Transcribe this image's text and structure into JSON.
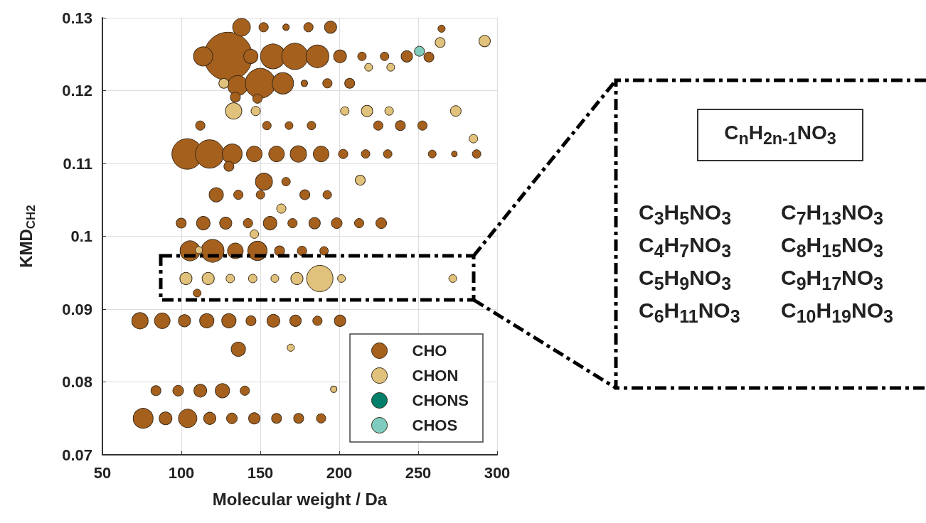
{
  "chart_data": {
    "type": "bubble",
    "xlabel": "Molecular weight / Da",
    "ylabel": "KMD$_{CH2}$",
    "xlim": [
      50,
      300
    ],
    "xticks": [
      50,
      100,
      150,
      200,
      250,
      300
    ],
    "ylim": [
      0.07,
      0.13
    ],
    "yticks": [
      0.07,
      0.08,
      0.09,
      0.1,
      0.11,
      0.12,
      0.13
    ],
    "grid": true,
    "legend": "bottom right",
    "marker": "circle",
    "annotations": [
      "C$_{n}$H$_{2n-1}$NO$_{3}$",
      "C$_{3}$H$_{5}$NO$_{3}$",
      "C$_{7}$H$_{13}$NO$_{3}$",
      "C$_{4}$H$_{7}$NO$_{3}$",
      "C$_{8}$H$_{15}$NO$_{3}$",
      "C$_{5}$H$_{9}$NO$_{3}$",
      "C$_{9}$H$_{17}$NO$_{3}$",
      "C$_{6}$H$_{11}$NO$_{3}$",
      "C$_{10}$H$_{19}$NO$_{3}$"
    ],
    "series": [
      {
        "name": "CHO",
        "color": "#a5601d",
        "x": [
          129.6,
          138.1,
          152.1,
          166.3,
          180.5,
          194.5,
          264.8,
          113.8,
          144,
          158,
          171.9,
          186.2,
          200.5,
          214.4,
          228.7,
          242.8,
          256.8,
          135.7,
          150,
          164.3,
          177.9,
          192.5,
          206.6,
          134.2,
          148.2,
          112,
          154.2,
          168.2,
          182.4,
          224.7,
          238.7,
          252.7,
          103.7,
          117.9,
          132.2,
          146.2,
          160.3,
          174.1,
          188.5,
          202.5,
          216.7,
          230.7,
          258.9,
          272.9,
          287,
          130.1,
          152.3,
          166.3,
          122.1,
          136.1,
          150.1,
          178.2,
          192.4,
          99.9,
          113.9,
          128.1,
          142.2,
          156.2,
          170.4,
          184.4,
          198.4,
          212.6,
          226.6,
          105.5,
          119.8,
          134.2,
          148.2,
          162.2,
          176.4,
          190.4,
          110,
          73.8,
          87.9,
          102,
          116.1,
          130.1,
          144.1,
          158.3,
          172.3,
          186.2,
          200.5,
          136.1,
          83.9,
          98,
          112,
          126,
          140.2,
          75.8,
          90,
          104,
          118,
          132,
          146.2,
          160.3,
          174.3,
          188.5
        ],
        "values": [
          0.1247,
          0.1287,
          0.1287,
          0.1287,
          0.1287,
          0.1287,
          0.1285,
          0.1247,
          0.1247,
          0.1247,
          0.1247,
          0.1247,
          0.1247,
          0.1247,
          0.1247,
          0.1247,
          0.1246,
          0.1207,
          0.121,
          0.121,
          0.121,
          0.121,
          0.121,
          0.1191,
          0.1189,
          0.1152,
          0.1152,
          0.1152,
          0.1152,
          0.1152,
          0.1152,
          0.1152,
          0.1113,
          0.1113,
          0.1113,
          0.1113,
          0.1113,
          0.1113,
          0.1113,
          0.1113,
          0.1113,
          0.1113,
          0.1113,
          0.1113,
          0.1113,
          0.1096,
          0.1075,
          0.1075,
          0.1057,
          0.1057,
          0.1057,
          0.1057,
          0.1057,
          0.1018,
          0.1018,
          0.1018,
          0.1018,
          0.1018,
          0.1018,
          0.1018,
          0.1018,
          0.1018,
          0.1018,
          0.098,
          0.098,
          0.098,
          0.098,
          0.098,
          0.098,
          0.098,
          0.0922,
          0.0884,
          0.0884,
          0.0884,
          0.0884,
          0.0884,
          0.0884,
          0.0884,
          0.0884,
          0.0884,
          0.0884,
          0.0845,
          0.0788,
          0.0788,
          0.0788,
          0.0788,
          0.0788,
          0.075,
          0.075,
          0.075,
          0.075,
          0.075,
          0.075,
          0.075,
          0.075,
          0.075
        ],
        "sizes": [
          1,
          0.135,
          0.037,
          0.018,
          0.037,
          0.063,
          0.022,
          0.158,
          0.087,
          0.265,
          0.296,
          0.221,
          0.07,
          0.031,
          0.031,
          0.055,
          0.042,
          0.17,
          0.381,
          0.195,
          0.018,
          0.037,
          0.042,
          0.042,
          0.037,
          0.037,
          0.031,
          0.026,
          0.031,
          0.037,
          0.042,
          0.037,
          0.4,
          0.346,
          0.17,
          0.105,
          0.105,
          0.114,
          0.105,
          0.037,
          0.031,
          0.031,
          0.026,
          0.014,
          0.031,
          0.042,
          0.125,
          0.031,
          0.087,
          0.037,
          0.031,
          0.042,
          0.031,
          0.042,
          0.078,
          0.063,
          0.037,
          0.078,
          0.037,
          0.055,
          0.049,
          0.037,
          0.049,
          0.17,
          0.221,
          0.105,
          0.158,
          0.042,
          0.037,
          0.031,
          0.026,
          0.114,
          0.105,
          0.063,
          0.087,
          0.087,
          0.042,
          0.07,
          0.055,
          0.037,
          0.055,
          0.087,
          0.042,
          0.049,
          0.07,
          0.087,
          0.037,
          0.17,
          0.07,
          0.146,
          0.063,
          0.049,
          0.055,
          0.042,
          0.042,
          0.037
        ]
      },
      {
        "name": "CHON",
        "color": "#e0c27c",
        "x": [
          263.9,
          292.1,
          218.6,
          232.6,
          126.9,
          133.1,
          147.1,
          203.5,
          217.6,
          231.6,
          273.8,
          285,
          213.3,
          163.3,
          146.2,
          111.1,
          102.9,
          117,
          131,
          145.2,
          159.2,
          173.2,
          187.7,
          201.4,
          271.9,
          169.3,
          196.5
        ],
        "values": [
          0.1266,
          0.1268,
          0.1232,
          0.1232,
          0.121,
          0.1172,
          0.1172,
          0.1172,
          0.1172,
          0.1172,
          0.1172,
          0.1134,
          0.1077,
          0.1038,
          0.1003,
          0.0981,
          0.0942,
          0.0942,
          0.0942,
          0.0942,
          0.0942,
          0.0942,
          0.0942,
          0.0942,
          0.0942,
          0.0847,
          0.079
        ],
        "sizes": [
          0.042,
          0.055,
          0.026,
          0.026,
          0.042,
          0.114,
          0.037,
          0.031,
          0.055,
          0.031,
          0.049,
          0.031,
          0.042,
          0.037,
          0.031,
          0.022,
          0.063,
          0.063,
          0.031,
          0.031,
          0.026,
          0.063,
          0.296,
          0.026,
          0.026,
          0.022,
          0.018
        ]
      },
      {
        "name": "CHONS",
        "color": "#00806b"
      },
      {
        "name": "CHOS",
        "color": "#7ecdbf",
        "x": [
          250.8
        ],
        "values": [
          0.1254
        ],
        "sizes": [
          0.042
        ]
      }
    ]
  }
}
